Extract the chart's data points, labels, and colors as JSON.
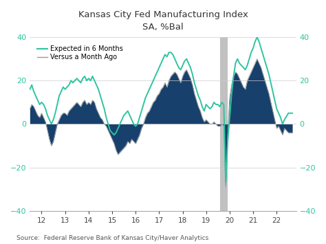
{
  "title_line1": "Kansas City Fed Manufacturing Index",
  "title_line2": "SA, %Bal",
  "legend_line1": "Expected in 6 Months",
  "legend_line2": "Versus a Month Ago",
  "source_text": "Source:  Federal Reserve Bank of Kansas City/Haver Analytics",
  "ylim": [
    -40,
    40
  ],
  "yticks": [
    -40,
    -20,
    0,
    20,
    40
  ],
  "xticks": [
    2012,
    2013,
    2014,
    2015,
    2016,
    2017,
    2018,
    2019,
    2020,
    2021,
    2022
  ],
  "xlim": [
    2011.5,
    2022.83
  ],
  "vline_x": 2019.75,
  "color_fill": "#17406d",
  "color_teal": "#2ec4a0",
  "color_gray_line": "#999999",
  "color_vline": "#bbbbbb",
  "color_axis_teal": "#2ec4a0",
  "background": "#ffffff",
  "versus_data_dates": [
    2011.5,
    2011.583,
    2011.667,
    2011.75,
    2011.833,
    2011.917,
    2012.0,
    2012.083,
    2012.167,
    2012.25,
    2012.333,
    2012.417,
    2012.5,
    2012.583,
    2012.667,
    2012.75,
    2012.833,
    2012.917,
    2013.0,
    2013.083,
    2013.167,
    2013.25,
    2013.333,
    2013.417,
    2013.5,
    2013.583,
    2013.667,
    2013.75,
    2013.833,
    2013.917,
    2014.0,
    2014.083,
    2014.167,
    2014.25,
    2014.333,
    2014.417,
    2014.5,
    2014.583,
    2014.667,
    2014.75,
    2014.833,
    2014.917,
    2015.0,
    2015.083,
    2015.167,
    2015.25,
    2015.333,
    2015.417,
    2015.5,
    2015.583,
    2015.667,
    2015.75,
    2015.833,
    2015.917,
    2016.0,
    2016.083,
    2016.167,
    2016.25,
    2016.333,
    2016.417,
    2016.5,
    2016.583,
    2016.667,
    2016.75,
    2016.833,
    2016.917,
    2017.0,
    2017.083,
    2017.167,
    2017.25,
    2017.333,
    2017.417,
    2017.5,
    2017.583,
    2017.667,
    2017.75,
    2017.833,
    2017.917,
    2018.0,
    2018.083,
    2018.167,
    2018.25,
    2018.333,
    2018.417,
    2018.5,
    2018.583,
    2018.667,
    2018.75,
    2018.833,
    2018.917,
    2019.0,
    2019.083,
    2019.167,
    2019.25,
    2019.333,
    2019.417,
    2019.5,
    2019.583,
    2019.667,
    2019.75,
    2019.833,
    2019.917,
    2020.0,
    2020.083,
    2020.167,
    2020.25,
    2020.333,
    2020.417,
    2020.5,
    2020.583,
    2020.667,
    2020.75,
    2020.833,
    2020.917,
    2021.0,
    2021.083,
    2021.167,
    2021.25,
    2021.333,
    2021.417,
    2021.5,
    2021.583,
    2021.667,
    2021.75,
    2021.833,
    2021.917,
    2022.0,
    2022.083,
    2022.167,
    2022.25,
    2022.333,
    2022.5,
    2022.667
  ],
  "versus_data_values": [
    7,
    9,
    8,
    6,
    4,
    3,
    5,
    3,
    1,
    -3,
    -7,
    -10,
    -8,
    -4,
    0,
    2,
    4,
    5,
    5,
    4,
    6,
    7,
    8,
    9,
    10,
    9,
    8,
    10,
    11,
    9,
    10,
    9,
    11,
    10,
    7,
    5,
    3,
    2,
    0,
    -1,
    -3,
    -5,
    -7,
    -9,
    -12,
    -14,
    -13,
    -12,
    -11,
    -10,
    -8,
    -9,
    -7,
    -8,
    -9,
    -7,
    -5,
    -2,
    0,
    3,
    5,
    6,
    8,
    10,
    11,
    13,
    14,
    16,
    17,
    19,
    17,
    20,
    22,
    23,
    24,
    23,
    21,
    19,
    22,
    24,
    25,
    23,
    21,
    18,
    14,
    11,
    8,
    6,
    3,
    1,
    2,
    1,
    0,
    0,
    1,
    0,
    -1,
    -1,
    0,
    -1,
    -29,
    -5,
    12,
    18,
    22,
    24,
    23,
    21,
    19,
    17,
    16,
    20,
    22,
    24,
    26,
    28,
    30,
    28,
    26,
    23,
    20,
    17,
    14,
    10,
    6,
    2,
    -2,
    -1,
    -3,
    -5,
    -2,
    -4,
    -4
  ],
  "expected_data_dates": [
    2011.5,
    2011.583,
    2011.667,
    2011.75,
    2011.833,
    2011.917,
    2012.0,
    2012.083,
    2012.167,
    2012.25,
    2012.333,
    2012.417,
    2012.5,
    2012.583,
    2012.667,
    2012.75,
    2012.833,
    2012.917,
    2013.0,
    2013.083,
    2013.167,
    2013.25,
    2013.333,
    2013.417,
    2013.5,
    2013.583,
    2013.667,
    2013.75,
    2013.833,
    2013.917,
    2014.0,
    2014.083,
    2014.167,
    2014.25,
    2014.333,
    2014.417,
    2014.5,
    2014.583,
    2014.667,
    2014.75,
    2014.833,
    2014.917,
    2015.0,
    2015.083,
    2015.167,
    2015.25,
    2015.333,
    2015.417,
    2015.5,
    2015.583,
    2015.667,
    2015.75,
    2015.833,
    2015.917,
    2016.0,
    2016.083,
    2016.167,
    2016.25,
    2016.333,
    2016.417,
    2016.5,
    2016.583,
    2016.667,
    2016.75,
    2016.833,
    2016.917,
    2017.0,
    2017.083,
    2017.167,
    2017.25,
    2017.333,
    2017.417,
    2017.5,
    2017.583,
    2017.667,
    2017.75,
    2017.833,
    2017.917,
    2018.0,
    2018.083,
    2018.167,
    2018.25,
    2018.333,
    2018.417,
    2018.5,
    2018.583,
    2018.667,
    2018.75,
    2018.833,
    2018.917,
    2019.0,
    2019.083,
    2019.167,
    2019.25,
    2019.333,
    2019.417,
    2019.5,
    2019.583,
    2019.667,
    2019.75,
    2019.833,
    2019.917,
    2020.0,
    2020.083,
    2020.167,
    2020.25,
    2020.333,
    2020.417,
    2020.5,
    2020.583,
    2020.667,
    2020.75,
    2020.833,
    2020.917,
    2021.0,
    2021.083,
    2021.167,
    2021.25,
    2021.333,
    2021.417,
    2021.5,
    2021.583,
    2021.667,
    2021.75,
    2021.833,
    2021.917,
    2022.0,
    2022.083,
    2022.167,
    2022.25,
    2022.333,
    2022.5,
    2022.667
  ],
  "expected_data_values": [
    16,
    18,
    15,
    13,
    11,
    9,
    10,
    9,
    7,
    4,
    2,
    0,
    2,
    5,
    9,
    13,
    15,
    17,
    16,
    17,
    18,
    20,
    19,
    20,
    21,
    20,
    19,
    21,
    22,
    20,
    21,
    20,
    22,
    20,
    18,
    16,
    13,
    10,
    7,
    3,
    0,
    -3,
    -4,
    -5,
    -4,
    -2,
    0,
    2,
    4,
    5,
    6,
    4,
    2,
    0,
    -1,
    0,
    3,
    6,
    9,
    12,
    14,
    16,
    18,
    20,
    22,
    24,
    26,
    28,
    30,
    32,
    31,
    33,
    33,
    32,
    30,
    28,
    26,
    25,
    27,
    29,
    30,
    28,
    26,
    23,
    19,
    16,
    13,
    11,
    8,
    6,
    9,
    8,
    7,
    8,
    10,
    9,
    9,
    8,
    10,
    9,
    -27,
    -8,
    3,
    14,
    22,
    28,
    30,
    28,
    27,
    26,
    25,
    27,
    30,
    33,
    35,
    38,
    40,
    38,
    35,
    32,
    29,
    26,
    23,
    19,
    15,
    11,
    7,
    5,
    3,
    0,
    2,
    5,
    5
  ]
}
